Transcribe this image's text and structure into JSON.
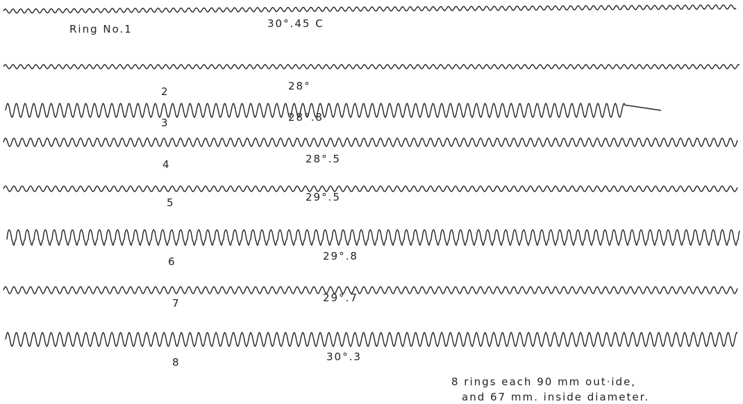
{
  "rings": [
    {
      "label": "Ring No.1",
      "temperature": "30°.45 C"
    },
    {
      "label": "2",
      "temperature": "28°"
    },
    {
      "label": "3",
      "temperature": "28°.8"
    },
    {
      "label": "4",
      "temperature": "28°.5"
    },
    {
      "label": "5",
      "temperature": "29°.5"
    },
    {
      "label": "6",
      "temperature": "29°.8"
    },
    {
      "label": "7",
      "temperature": "29°.7"
    },
    {
      "label": "8",
      "temperature": "30°.3"
    }
  ],
  "note": [
    "8 rings   each   90 mm  out·ide,",
    "and   67  mm.  inside   diameter."
  ]
}
